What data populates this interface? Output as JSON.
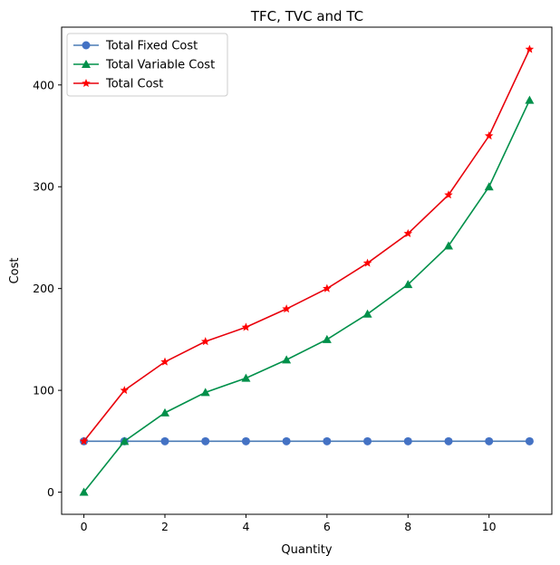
{
  "chart_data": {
    "type": "line",
    "title": "TFC, TVC and TC",
    "xlabel": "Quantity",
    "ylabel": "Cost",
    "x": [
      0,
      1,
      2,
      3,
      4,
      5,
      6,
      7,
      8,
      9,
      10,
      11
    ],
    "xlim": [
      -0.55,
      11.55
    ],
    "ylim": [
      -21.75,
      456.75
    ],
    "xticks": [
      0,
      2,
      4,
      6,
      8,
      10
    ],
    "yticks": [
      0,
      100,
      200,
      300,
      400
    ],
    "grid": false,
    "legend": "top-left",
    "series": [
      {
        "name": "Total Fixed Cost",
        "values": [
          50,
          50,
          50,
          50,
          50,
          50,
          50,
          50,
          50,
          50,
          50,
          50
        ],
        "color": "#4472c4",
        "line_color": "#4a7bb5",
        "marker": "circle"
      },
      {
        "name": "Total Variable Cost",
        "values": [
          0,
          50,
          78,
          98,
          112,
          130,
          150,
          175,
          204,
          242,
          300,
          385
        ],
        "color": "#00904a",
        "line_color": "#00904a",
        "marker": "triangle"
      },
      {
        "name": "Total Cost",
        "values": [
          50,
          100,
          128,
          148,
          162,
          180,
          200,
          225,
          254,
          292,
          350,
          435
        ],
        "color": "#ff0000",
        "line_color": "#e8000b",
        "marker": "star"
      }
    ]
  }
}
